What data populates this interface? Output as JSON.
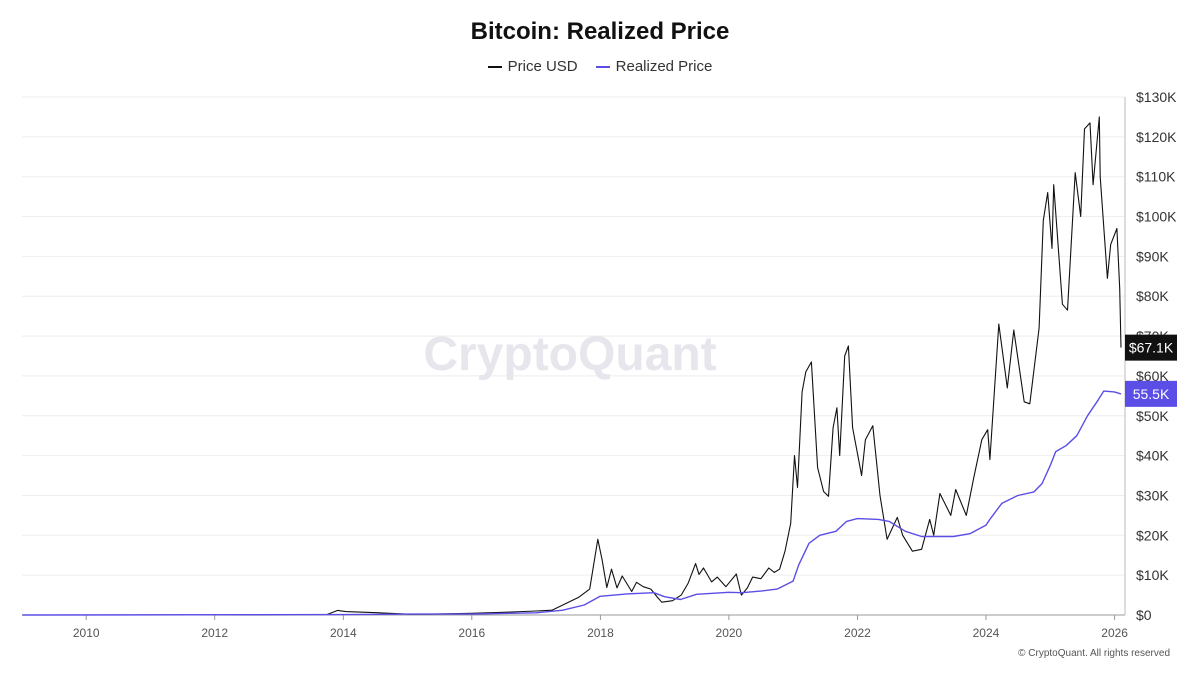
{
  "chart_data": {
    "type": "line",
    "title": "Bitcoin: Realized Price",
    "legend_position": "top-center",
    "grid": true,
    "series": [
      {
        "name": "Price USD",
        "color": "#111111",
        "points": [
          [
            "2009-01-03",
            0
          ],
          [
            "2010-07-17",
            0.05
          ],
          [
            "2011-06-08",
            30
          ],
          [
            "2012-06-01",
            5
          ],
          [
            "2013-04-01",
            100
          ],
          [
            "2013-10-01",
            130
          ],
          [
            "2013-11-30",
            1150
          ],
          [
            "2014-01-15",
            850
          ],
          [
            "2014-06-01",
            640
          ],
          [
            "2015-01-14",
            200
          ],
          [
            "2015-06-01",
            230
          ],
          [
            "2016-01-01",
            430
          ],
          [
            "2016-07-01",
            670
          ],
          [
            "2017-01-01",
            1000
          ],
          [
            "2017-04-01",
            1200
          ],
          [
            "2017-06-01",
            2500
          ],
          [
            "2017-09-01",
            4500
          ],
          [
            "2017-11-01",
            6500
          ],
          [
            "2017-12-17",
            19000
          ],
          [
            "2018-01-10",
            14000
          ],
          [
            "2018-02-06",
            6900
          ],
          [
            "2018-03-05",
            11500
          ],
          [
            "2018-04-05",
            6800
          ],
          [
            "2018-05-05",
            9800
          ],
          [
            "2018-06-28",
            5900
          ],
          [
            "2018-07-25",
            8200
          ],
          [
            "2018-09-01",
            7100
          ],
          [
            "2018-10-15",
            6500
          ],
          [
            "2018-11-20",
            4500
          ],
          [
            "2018-12-15",
            3200
          ],
          [
            "2019-02-15",
            3600
          ],
          [
            "2019-04-05",
            5000
          ],
          [
            "2019-05-15",
            8000
          ],
          [
            "2019-06-26",
            12900
          ],
          [
            "2019-07-15",
            10200
          ],
          [
            "2019-08-10",
            11800
          ],
          [
            "2019-09-25",
            8300
          ],
          [
            "2019-10-27",
            9500
          ],
          [
            "2019-12-15",
            7100
          ],
          [
            "2020-02-12",
            10300
          ],
          [
            "2020-03-12",
            5000
          ],
          [
            "2020-04-15",
            6800
          ],
          [
            "2020-05-15",
            9500
          ],
          [
            "2020-07-01",
            9100
          ],
          [
            "2020-08-15",
            11800
          ],
          [
            "2020-09-15",
            10700
          ],
          [
            "2020-10-15",
            11500
          ],
          [
            "2020-11-15",
            16000
          ],
          [
            "2020-12-17",
            23000
          ],
          [
            "2021-01-08",
            40000
          ],
          [
            "2021-01-25",
            32000
          ],
          [
            "2021-02-20",
            56000
          ],
          [
            "2021-03-13",
            61000
          ],
          [
            "2021-04-14",
            63500
          ],
          [
            "2021-05-19",
            37000
          ],
          [
            "2021-06-22",
            31000
          ],
          [
            "2021-07-20",
            29800
          ],
          [
            "2021-08-15",
            47000
          ],
          [
            "2021-09-06",
            52000
          ],
          [
            "2021-09-22",
            40000
          ],
          [
            "2021-10-20",
            65000
          ],
          [
            "2021-11-10",
            67500
          ],
          [
            "2021-12-04",
            47000
          ],
          [
            "2022-01-24",
            35000
          ],
          [
            "2022-02-15",
            44000
          ],
          [
            "2022-03-29",
            47500
          ],
          [
            "2022-05-09",
            30000
          ],
          [
            "2022-06-18",
            19000
          ],
          [
            "2022-08-15",
            24500
          ],
          [
            "2022-09-15",
            20000
          ],
          [
            "2022-11-09",
            16000
          ],
          [
            "2022-12-31",
            16500
          ],
          [
            "2023-02-15",
            24000
          ],
          [
            "2023-03-10",
            20000
          ],
          [
            "2023-04-14",
            30500
          ],
          [
            "2023-06-15",
            25000
          ],
          [
            "2023-07-13",
            31500
          ],
          [
            "2023-09-11",
            25000
          ],
          [
            "2023-10-24",
            34500
          ],
          [
            "2023-12-08",
            44000
          ],
          [
            "2024-01-11",
            46500
          ],
          [
            "2024-01-23",
            39000
          ],
          [
            "2024-03-14",
            73000
          ],
          [
            "2024-05-01",
            57000
          ],
          [
            "2024-06-07",
            71500
          ],
          [
            "2024-08-05",
            53500
          ],
          [
            "2024-09-06",
            53000
          ],
          [
            "2024-10-29",
            72000
          ],
          [
            "2024-11-22",
            99000
          ],
          [
            "2024-12-17",
            106000
          ],
          [
            "2025-01-10",
            92000
          ],
          [
            "2025-01-20",
            108000
          ],
          [
            "2025-03-10",
            78000
          ],
          [
            "2025-04-08",
            76500
          ],
          [
            "2025-05-22",
            111000
          ],
          [
            "2025-06-22",
            100000
          ],
          [
            "2025-07-14",
            122000
          ],
          [
            "2025-08-14",
            123500
          ],
          [
            "2025-09-01",
            108000
          ],
          [
            "2025-10-06",
            125000
          ],
          [
            "2025-10-11",
            110000
          ],
          [
            "2025-11-21",
            84500
          ],
          [
            "2025-12-10",
            93000
          ],
          [
            "2026-01-14",
            97000
          ],
          [
            "2026-01-30",
            82000
          ],
          [
            "2026-02-06",
            67100
          ]
        ]
      },
      {
        "name": "Realized Price",
        "color": "#5b4ee6",
        "points": [
          [
            "2009-01-03",
            0
          ],
          [
            "2013-12-31",
            100
          ],
          [
            "2015-01-01",
            230
          ],
          [
            "2016-01-01",
            260
          ],
          [
            "2017-01-01",
            560
          ],
          [
            "2017-06-01",
            1200
          ],
          [
            "2017-10-01",
            2500
          ],
          [
            "2017-12-31",
            4700
          ],
          [
            "2018-06-01",
            5300
          ],
          [
            "2018-11-01",
            5600
          ],
          [
            "2018-12-31",
            4600
          ],
          [
            "2019-04-01",
            3900
          ],
          [
            "2019-07-01",
            5200
          ],
          [
            "2019-12-31",
            5700
          ],
          [
            "2020-03-15",
            5600
          ],
          [
            "2020-06-30",
            6000
          ],
          [
            "2020-10-01",
            6500
          ],
          [
            "2020-12-31",
            8500
          ],
          [
            "2021-01-31",
            12500
          ],
          [
            "2021-03-31",
            18000
          ],
          [
            "2021-05-31",
            20000
          ],
          [
            "2021-08-31",
            21000
          ],
          [
            "2021-10-31",
            23500
          ],
          [
            "2021-12-31",
            24200
          ],
          [
            "2022-04-30",
            24000
          ],
          [
            "2022-06-30",
            23500
          ],
          [
            "2022-09-30",
            21000
          ],
          [
            "2022-12-31",
            19700
          ],
          [
            "2023-06-30",
            19700
          ],
          [
            "2023-10-01",
            20400
          ],
          [
            "2023-12-31",
            22500
          ],
          [
            "2024-01-31",
            24500
          ],
          [
            "2024-03-31",
            28000
          ],
          [
            "2024-06-30",
            30000
          ],
          [
            "2024-09-30",
            30900
          ],
          [
            "2024-11-15",
            33000
          ],
          [
            "2024-12-31",
            37500
          ],
          [
            "2025-01-31",
            41000
          ],
          [
            "2025-03-31",
            42500
          ],
          [
            "2025-05-31",
            45000
          ],
          [
            "2025-07-31",
            50000
          ],
          [
            "2025-09-30",
            54000
          ],
          [
            "2025-10-31",
            56200
          ],
          [
            "2025-12-31",
            56000
          ],
          [
            "2026-02-06",
            55500
          ]
        ]
      }
    ],
    "x_ticks": [
      "2010",
      "2012",
      "2014",
      "2016",
      "2018",
      "2020",
      "2022",
      "2024",
      "2026"
    ],
    "y_ticks": [
      "$0",
      "$10K",
      "$20K",
      "$30K",
      "$40K",
      "$50K",
      "$60K",
      "$70K",
      "$80K",
      "$90K",
      "$100K",
      "$110K",
      "$120K",
      "$130K"
    ],
    "ylim": [
      0,
      130000
    ],
    "last_value_labels": [
      {
        "series": "Price USD",
        "value": 67100,
        "text": "$67.1K",
        "bg": "#111111"
      },
      {
        "series": "Realized Price",
        "value": 55500,
        "text": "55.5K",
        "bg": "#5b4ee6"
      }
    ]
  },
  "watermark": "CryptoQuant",
  "footer": "© CryptoQuant. All rights reserved"
}
